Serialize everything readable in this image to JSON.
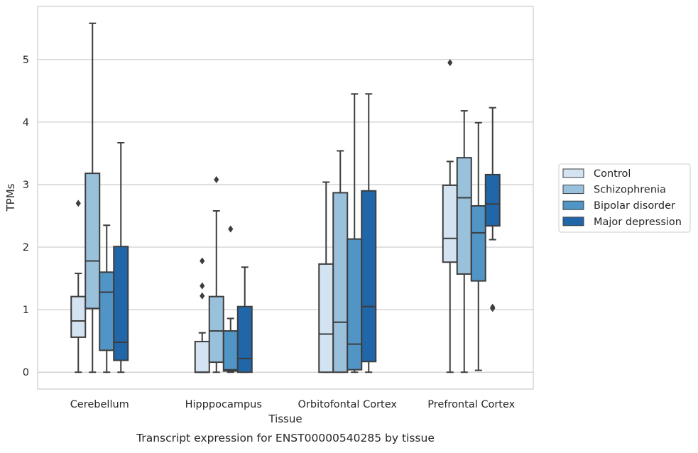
{
  "chart_data": {
    "type": "boxplot",
    "title": "Transcript expression for ENST00000540285 by tissue",
    "xlabel": "Tissue",
    "ylabel": "TPMs",
    "ylim": [
      -0.27,
      5.85
    ],
    "yticks": [
      0,
      1,
      2,
      3,
      4,
      5
    ],
    "grid": "horizontal",
    "legend_position": "right",
    "categories": [
      "Cerebellum",
      "Hipppocampus",
      "Orbitofontal Cortex",
      "Prefrontal Cortex"
    ],
    "series": [
      {
        "name": "Control",
        "color": "#d3e3f2",
        "boxes": [
          {
            "whislo": 0,
            "q1": 0.56,
            "med": 0.82,
            "q3": 1.21,
            "whishi": 1.58,
            "fliers": [
              2.7
            ]
          },
          {
            "whislo": 0,
            "q1": 0,
            "med": 0,
            "q3": 0.49,
            "whishi": 0.63,
            "fliers": [
              1.78,
              1.38,
              1.22
            ]
          },
          {
            "whislo": 0,
            "q1": 0,
            "med": 0.61,
            "q3": 1.73,
            "whishi": 3.04,
            "fliers": []
          },
          {
            "whislo": 0,
            "q1": 1.76,
            "med": 2.14,
            "q3": 2.99,
            "whishi": 3.37,
            "fliers": [
              4.95
            ]
          }
        ]
      },
      {
        "name": "Schizophrenia",
        "color": "#9ac1dc",
        "boxes": [
          {
            "whislo": 0,
            "q1": 1.02,
            "med": 1.78,
            "q3": 3.18,
            "whishi": 5.58,
            "fliers": []
          },
          {
            "whislo": 0,
            "q1": 0.16,
            "med": 0.66,
            "q3": 1.21,
            "whishi": 2.58,
            "fliers": [
              3.08
            ]
          },
          {
            "whislo": 0,
            "q1": 0,
            "med": 0.8,
            "q3": 2.87,
            "whishi": 3.54,
            "fliers": []
          },
          {
            "whislo": 0,
            "q1": 1.57,
            "med": 2.79,
            "q3": 3.43,
            "whishi": 4.18,
            "fliers": []
          }
        ]
      },
      {
        "name": "Bipolar disorder",
        "color": "#5095c6",
        "boxes": [
          {
            "whislo": 0,
            "q1": 0.35,
            "med": 1.28,
            "q3": 1.6,
            "whishi": 2.35,
            "fliers": []
          },
          {
            "whislo": 0,
            "q1": 0.02,
            "med": 0.04,
            "q3": 0.66,
            "whishi": 0.86,
            "fliers": [
              2.29
            ]
          },
          {
            "whislo": 0,
            "q1": 0.04,
            "med": 0.45,
            "q3": 2.13,
            "whishi": 4.45,
            "fliers": []
          },
          {
            "whislo": 0.03,
            "q1": 1.46,
            "med": 2.23,
            "q3": 2.66,
            "whishi": 3.99,
            "fliers": []
          }
        ]
      },
      {
        "name": "Major depression",
        "color": "#2166a8",
        "boxes": [
          {
            "whislo": 0,
            "q1": 0.19,
            "med": 0.48,
            "q3": 2.01,
            "whishi": 3.67,
            "fliers": []
          },
          {
            "whislo": 0,
            "q1": 0,
            "med": 0.22,
            "q3": 1.05,
            "whishi": 1.68,
            "fliers": []
          },
          {
            "whislo": 0,
            "q1": 0.17,
            "med": 1.05,
            "q3": 2.9,
            "whishi": 4.45,
            "fliers": []
          },
          {
            "whislo": 2.12,
            "q1": 2.34,
            "med": 2.69,
            "q3": 3.16,
            "whishi": 4.23,
            "fliers": [
              1.02,
              1.04
            ]
          }
        ]
      }
    ]
  }
}
